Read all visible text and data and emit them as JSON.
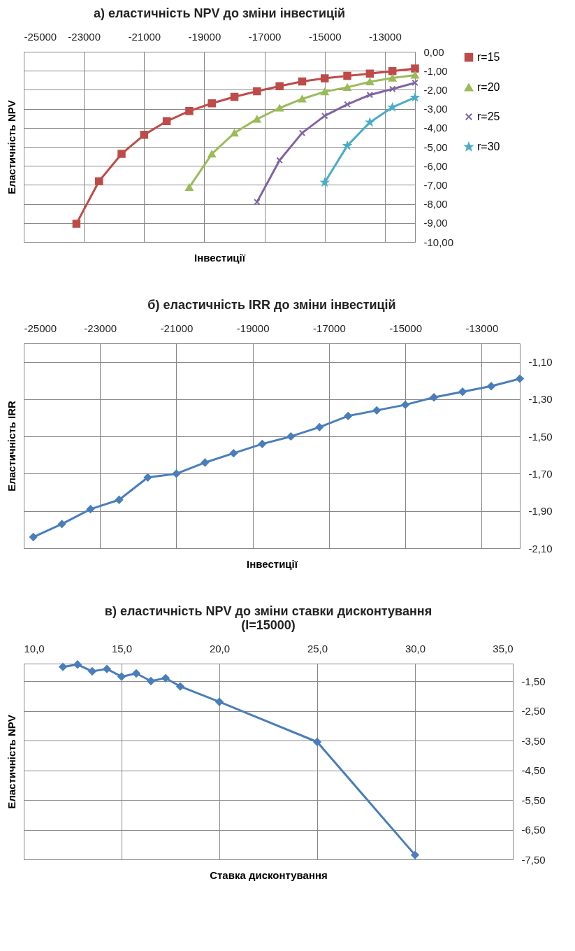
{
  "chart_data": [
    {
      "type": "line",
      "title": "а) еластичність NPV до зміни інвестицій",
      "xlabel": "Інвестиції",
      "ylabel": "Еластичність NPV",
      "xlim": [
        -25000,
        -12000
      ],
      "xticks": [
        -25000,
        -23000,
        -21000,
        -19000,
        -17000,
        -15000,
        -13000
      ],
      "ylim": [
        -10,
        0
      ],
      "yticks": [
        {
          "value": 0,
          "label": "0,00"
        },
        {
          "value": -1,
          "label": "-1,00"
        },
        {
          "value": -2,
          "label": "-2,00"
        },
        {
          "value": -3,
          "label": "-3,00"
        },
        {
          "value": -4,
          "label": "-4,00"
        },
        {
          "value": -5,
          "label": "-5,00"
        },
        {
          "value": -6,
          "label": "-6,00"
        },
        {
          "value": -7,
          "label": "-7,00"
        },
        {
          "value": -8,
          "label": "-8,00"
        },
        {
          "value": -9,
          "label": "-9,00"
        },
        {
          "value": -10,
          "label": "-10,00"
        }
      ],
      "grid": true,
      "legend": "right",
      "series": [
        {
          "name": "r=15",
          "color": "#be4b48",
          "marker": "square",
          "x": [
            -23250,
            -22500,
            -21750,
            -21000,
            -20250,
            -19500,
            -18750,
            -18000,
            -17250,
            -16500,
            -15750,
            -15000,
            -14250,
            -13500,
            -12750,
            -12000
          ],
          "values": [
            -9.04,
            -6.81,
            -5.37,
            -4.37,
            -3.65,
            -3.12,
            -2.71,
            -2.37,
            -2.08,
            -1.81,
            -1.56,
            -1.4,
            -1.27,
            -1.15,
            -1.02,
            -0.88
          ]
        },
        {
          "name": "r=20",
          "color": "#9bbb59",
          "marker": "triangle",
          "x": [
            -19500,
            -18750,
            -18000,
            -17250,
            -16500,
            -15750,
            -15000,
            -14250,
            -13500,
            -12750,
            -12000
          ],
          "values": [
            -7.13,
            -5.37,
            -4.27,
            -3.54,
            -2.96,
            -2.48,
            -2.1,
            -1.87,
            -1.58,
            -1.38,
            -1.23
          ]
        },
        {
          "name": "r=25",
          "color": "#8064a2",
          "marker": "cross",
          "x": [
            -17250,
            -16500,
            -15750,
            -15000,
            -14250,
            -13500,
            -12750,
            -12000
          ],
          "values": [
            -7.9,
            -5.71,
            -4.27,
            -3.37,
            -2.77,
            -2.27,
            -1.96,
            -1.63
          ]
        },
        {
          "name": "r=30",
          "color": "#4bacc6",
          "marker": "star",
          "x": [
            -15000,
            -14250,
            -13500,
            -12750,
            -12000
          ],
          "values": [
            -6.87,
            -4.94,
            -3.71,
            -2.92,
            -2.4
          ]
        }
      ]
    },
    {
      "type": "line",
      "title": "б) еластичність IRR до зміни інвестицій",
      "xlabel": "Інвестиції",
      "ylabel": "Еластичність IRR",
      "xlim": [
        -25000,
        -12000
      ],
      "xticks": [
        -25000,
        -23000,
        -21000,
        -19000,
        -17000,
        -15000,
        -13000
      ],
      "ylim": [
        -2.1,
        -1.0
      ],
      "yticks": [
        {
          "value": -1.1,
          "label": "-1,10"
        },
        {
          "value": -1.3,
          "label": "-1,30"
        },
        {
          "value": -1.5,
          "label": "-1,50"
        },
        {
          "value": -1.7,
          "label": "-1,70"
        },
        {
          "value": -1.9,
          "label": "-1,90"
        },
        {
          "value": -2.1,
          "label": "-2,10"
        }
      ],
      "grid": true,
      "marker": "diamond",
      "series": [
        {
          "color": "#4a7ebb",
          "x": [
            -24750,
            -24000,
            -23250,
            -22500,
            -21750,
            -21000,
            -20250,
            -19500,
            -18750,
            -18000,
            -17250,
            -16500,
            -15750,
            -15000,
            -14250,
            -13500,
            -12750,
            -12000
          ],
          "values": [
            -2.04,
            -1.97,
            -1.89,
            -1.84,
            -1.72,
            -1.7,
            -1.64,
            -1.59,
            -1.54,
            -1.5,
            -1.45,
            -1.39,
            -1.36,
            -1.33,
            -1.29,
            -1.26,
            -1.23,
            -1.19
          ]
        }
      ]
    },
    {
      "type": "line",
      "title": "в) еластичність NPV до зміни ставки дисконтування\n(I=15000)",
      "xlabel": "Ставка дисконтування",
      "ylabel": "Еластичність NPV",
      "xlim": [
        10,
        35
      ],
      "xticks": [
        {
          "value": 10,
          "label": "10,0"
        },
        {
          "value": 15,
          "label": "15,0"
        },
        {
          "value": 20,
          "label": "20,0"
        },
        {
          "value": 25,
          "label": "25,0"
        },
        {
          "value": 30,
          "label": "30,0"
        },
        {
          "value": 35,
          "label": "35,0"
        }
      ],
      "ylim": [
        -7.5,
        -0.9
      ],
      "yticks": [
        {
          "value": -1.5,
          "label": "-1,50"
        },
        {
          "value": -2.5,
          "label": "-2,50"
        },
        {
          "value": -3.5,
          "label": "-3,50"
        },
        {
          "value": -4.5,
          "label": "-4,50"
        },
        {
          "value": -5.5,
          "label": "-5,50"
        },
        {
          "value": -6.5,
          "label": "-6,50"
        },
        {
          "value": -7.5,
          "label": "-7,50"
        }
      ],
      "grid": true,
      "marker": "diamond",
      "series": [
        {
          "color": "#4a7ebb",
          "x": [
            12,
            12.75,
            13.5,
            14.25,
            15,
            15.75,
            16.5,
            17.25,
            18,
            20,
            25,
            30
          ],
          "values": [
            -1.01,
            -0.93,
            -1.16,
            -1.08,
            -1.34,
            -1.23,
            -1.49,
            -1.39,
            -1.67,
            -2.19,
            -3.54,
            -7.35
          ]
        }
      ]
    }
  ]
}
